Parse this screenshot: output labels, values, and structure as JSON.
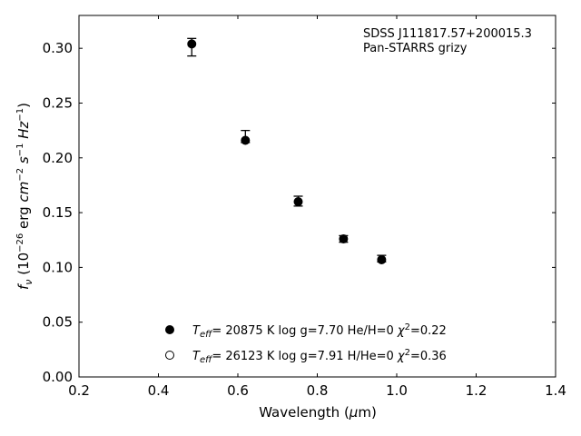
{
  "chart_data": {
    "type": "scatter",
    "annotation_lines": [
      "SDSS J111817.57+200015.3",
      "Pan-STARRS grizy"
    ],
    "annotation_position": "top-right",
    "xlabel": {
      "prefix": "Wavelength (",
      "symbol": "μ",
      "suffix": "m)"
    },
    "ylabel": "f_ν (10^-26 erg cm^-2 s^-1 Hz^-1)",
    "xlim": [
      0.2,
      1.4
    ],
    "ylim": [
      0.0,
      0.33
    ],
    "xticks": [
      0.2,
      0.4,
      0.6,
      0.8,
      1.0,
      1.2,
      1.4
    ],
    "xtick_labels": [
      "0.2",
      "0.4",
      "0.6",
      "0.8",
      "1.0",
      "1.2",
      "1.4"
    ],
    "yticks": [
      0.0,
      0.05,
      0.1,
      0.15,
      0.2,
      0.25,
      0.3
    ],
    "ytick_labels": [
      "0.00",
      "0.05",
      "0.10",
      "0.15",
      "0.20",
      "0.25",
      "0.30"
    ],
    "grid": false,
    "legend_placement": "lower-center",
    "observed": {
      "x": [
        0.484,
        0.619,
        0.752,
        0.866,
        0.962
      ],
      "y": [
        0.302,
        0.218,
        0.16,
        0.126,
        0.108
      ],
      "yerr_low": [
        0.009,
        0.004,
        0.004,
        0.003,
        0.003
      ],
      "yerr_high": [
        0.007,
        0.007,
        0.005,
        0.003,
        0.003
      ]
    },
    "models": [
      {
        "marker": "filled-circle",
        "teff": "= 20875 K",
        "rest": "log g=7.70  He/H=0",
        "chi2": "=0.22",
        "x": [
          0.484,
          0.619,
          0.752,
          0.866,
          0.962
        ],
        "y": [
          0.304,
          0.216,
          0.16,
          0.126,
          0.107
        ]
      },
      {
        "marker": "open-circle",
        "teff": "= 26123 K",
        "rest": "log g=7.91  H/He=0",
        "chi2": "=0.36",
        "x": [],
        "y": []
      }
    ],
    "colors": {
      "axes": "#000000",
      "marker": "#000000",
      "background": "#ffffff"
    }
  }
}
